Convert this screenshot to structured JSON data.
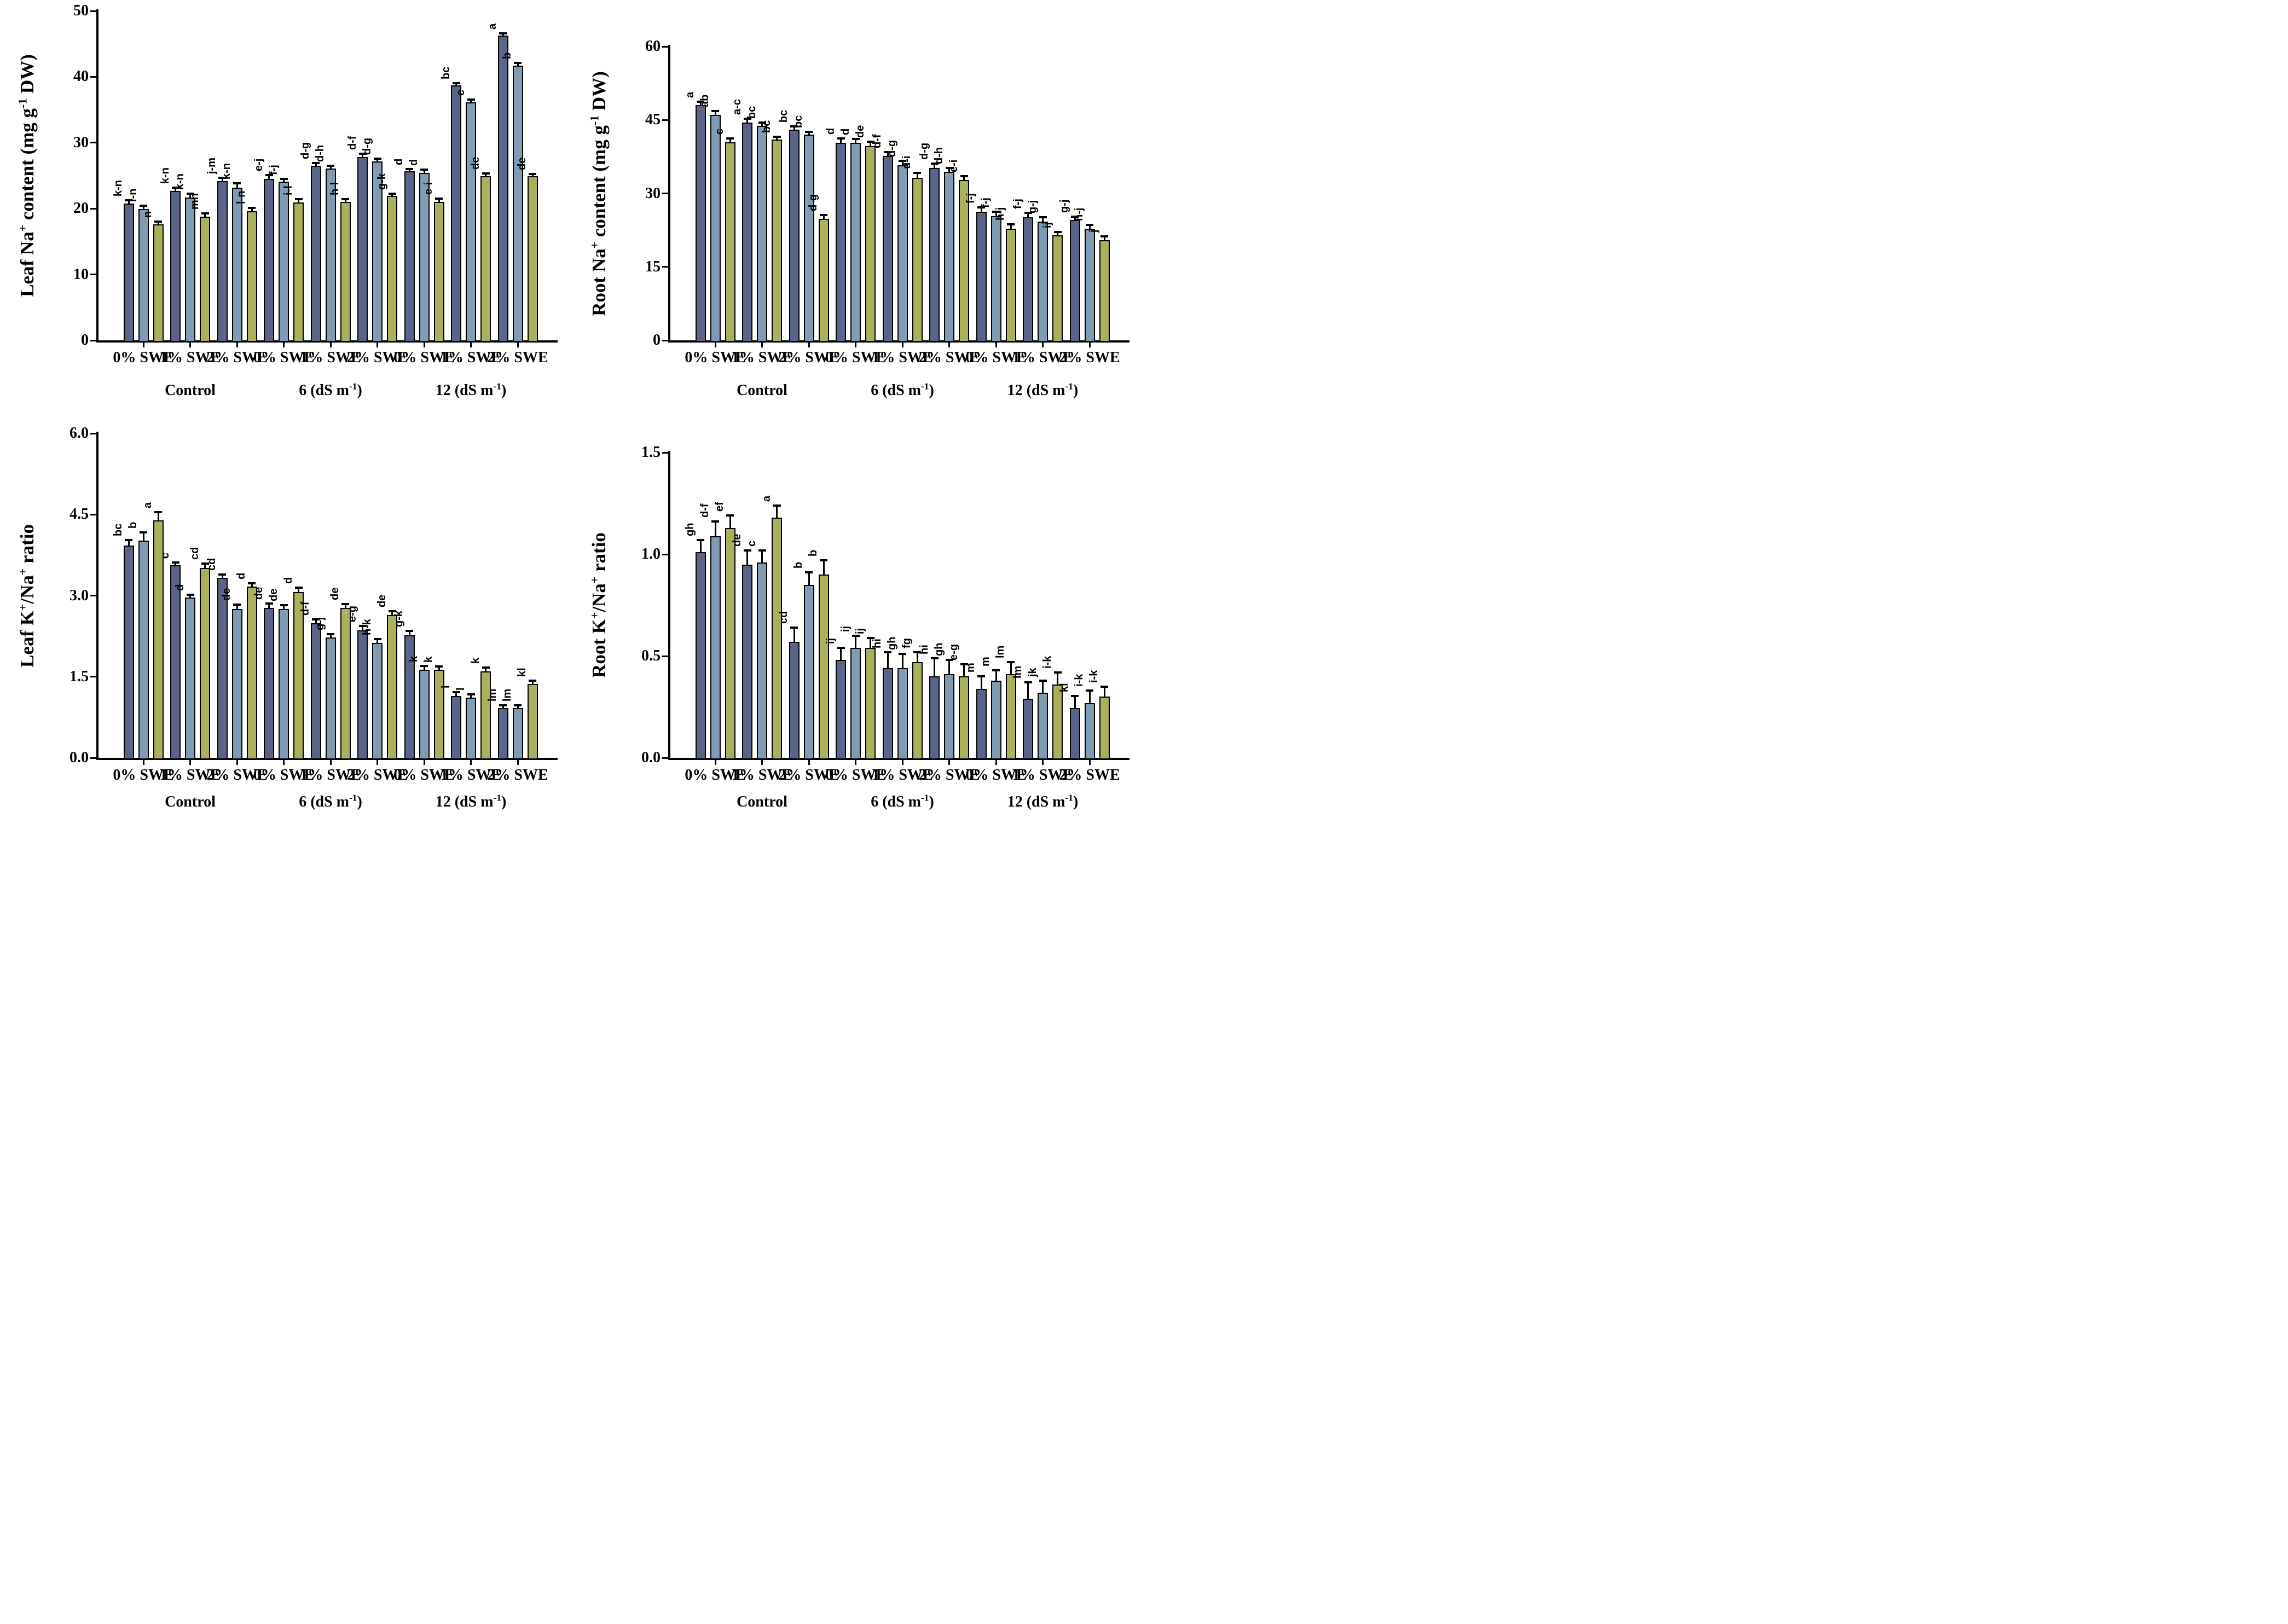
{
  "figure": {
    "background": "#ffffff",
    "axis_color": "#000000",
    "text_color": "#000000",
    "series_colors": [
      "#5a6489",
      "#7f9cb4",
      "#aab05c"
    ],
    "bar_outline_color": "#000000",
    "legend": "none",
    "grid": false
  },
  "chart_data": [
    {
      "type": "bar",
      "title": "",
      "ylabel_plain": "Leaf Na+ content (mg g-1 DW)",
      "ylabel": [
        {
          "t": "Leaf Na"
        },
        {
          "t": "+",
          "sup": true
        },
        {
          "t": " content (mg g"
        },
        {
          "t": "-1",
          "sup": true
        },
        {
          "t": " DW)"
        }
      ],
      "ylim": [
        0,
        50
      ],
      "yticks": [
        {
          "v": 0,
          "t": "0"
        },
        {
          "v": 10,
          "t": "10"
        },
        {
          "v": 20,
          "t": "20"
        },
        {
          "v": 30,
          "t": "30"
        },
        {
          "v": 40,
          "t": "40"
        },
        {
          "v": 50,
          "t": "50"
        }
      ],
      "conditions": [
        {
          "label_plain": "Control",
          "label": [
            {
              "t": "Control"
            }
          ],
          "center_group": 1
        },
        {
          "label_plain": "6 (dS m-1)",
          "label": [
            {
              "t": "6 (dS m"
            },
            {
              "t": "-1",
              "sup": true
            },
            {
              "t": ")"
            }
          ],
          "center_group": 4
        },
        {
          "label_plain": "12 (dS m-1)",
          "label": [
            {
              "t": "12 (dS m"
            },
            {
              "t": "-1",
              "sup": true
            },
            {
              "t": ")"
            }
          ],
          "center_group": 7
        }
      ],
      "groups": [
        {
          "category": "0% SWE",
          "values": [
            20.8,
            19.9,
            17.6
          ],
          "errors": [
            0.5,
            0.5,
            0.4
          ],
          "letters": [
            "k-n",
            "l-n",
            "n"
          ]
        },
        {
          "category": "1% SWE",
          "values": [
            22.7,
            21.7,
            18.8
          ],
          "errors": [
            0.5,
            0.6,
            0.5
          ],
          "letters": [
            "k-n",
            "k-n",
            "mn"
          ]
        },
        {
          "category": "2% SWE",
          "values": [
            24.2,
            23.2,
            19.6
          ],
          "errors": [
            0.5,
            0.6,
            0.5
          ],
          "letters": [
            "j-m",
            "k-n",
            "l-n"
          ]
        },
        {
          "category": "0% SWE",
          "values": [
            24.5,
            24.1,
            20.9
          ],
          "errors": [
            0.6,
            0.4,
            0.5
          ],
          "letters": [
            "e-j",
            "f-j",
            "i-l"
          ]
        },
        {
          "category": "1% SWE",
          "values": [
            26.5,
            26.1,
            21.0
          ],
          "errors": [
            0.4,
            0.4,
            0.4
          ],
          "letters": [
            "d-g",
            "d-h",
            "h-l"
          ]
        },
        {
          "category": "2% SWE",
          "values": [
            27.8,
            27.2,
            21.9
          ],
          "errors": [
            0.5,
            0.4,
            0.35
          ],
          "letters": [
            "d-f",
            "d-g",
            "g-k"
          ]
        },
        {
          "category": "0% SWE",
          "values": [
            25.7,
            25.4,
            21.0
          ],
          "errors": [
            0.3,
            0.5,
            0.5
          ],
          "letters": [
            "d",
            "d",
            "e-i"
          ]
        },
        {
          "category": "1% SWE",
          "values": [
            38.7,
            36.1,
            24.9
          ],
          "errors": [
            0.35,
            0.45,
            0.4
          ],
          "letters": [
            "bc",
            "c",
            "de"
          ]
        },
        {
          "category": "2% SWE",
          "values": [
            46.3,
            41.7,
            24.9
          ],
          "errors": [
            0.3,
            0.4,
            0.35
          ],
          "letters": [
            "a",
            "b",
            "de"
          ]
        }
      ]
    },
    {
      "type": "bar",
      "title": "",
      "ylabel_plain": "Root Na+ content (mg g-1 DW)",
      "ylabel": [
        {
          "t": "Root Na"
        },
        {
          "t": "+",
          "sup": true
        },
        {
          "t": " content (mg g"
        },
        {
          "t": "-1",
          "sup": true
        },
        {
          "t": " DW)"
        }
      ],
      "ylim": [
        0,
        60
      ],
      "yticks": [
        {
          "v": 0,
          "t": "0"
        },
        {
          "v": 15,
          "t": "15"
        },
        {
          "v": 30,
          "t": "30"
        },
        {
          "v": 45,
          "t": "45"
        },
        {
          "v": 60,
          "t": "60"
        }
      ],
      "conditions": [
        {
          "label_plain": "Control",
          "label": [
            {
              "t": "Control"
            }
          ],
          "center_group": 1
        },
        {
          "label_plain": "6 (dS m-1)",
          "label": [
            {
              "t": "6 (dS m"
            },
            {
              "t": "-1",
              "sup": true
            },
            {
              "t": ")"
            }
          ],
          "center_group": 4
        },
        {
          "label_plain": "12 (dS m-1)",
          "label": [
            {
              "t": "12 (dS m"
            },
            {
              "t": "-1",
              "sup": true
            },
            {
              "t": ")"
            }
          ],
          "center_group": 7
        }
      ],
      "groups": [
        {
          "category": "0% SWE",
          "values": [
            48.0,
            46.0,
            40.5
          ],
          "errors": [
            0.7,
            0.8,
            0.7
          ],
          "letters": [
            "a",
            "ab",
            "c"
          ]
        },
        {
          "category": "1% SWE",
          "values": [
            44.5,
            43.8,
            41.0
          ],
          "errors": [
            0.8,
            0.7,
            0.6
          ],
          "letters": [
            "a-c",
            "bc",
            "bc"
          ]
        },
        {
          "category": "2% SWE",
          "values": [
            43.0,
            42.0,
            24.8
          ],
          "errors": [
            0.7,
            0.6,
            0.8
          ],
          "letters": [
            "bc",
            "bc",
            "d-g"
          ]
        },
        {
          "category": "0% SWE",
          "values": [
            40.3,
            40.3,
            39.7
          ],
          "errors": [
            0.9,
            0.8,
            0.9
          ],
          "letters": [
            "d",
            "d",
            "de"
          ]
        },
        {
          "category": "1% SWE",
          "values": [
            37.6,
            35.8,
            33.2
          ],
          "errors": [
            0.8,
            0.9,
            1.0
          ],
          "letters": [
            "d-f",
            "d-g",
            "d-i"
          ]
        },
        {
          "category": "2% SWE",
          "values": [
            35.2,
            34.4,
            32.7
          ],
          "errors": [
            0.9,
            0.8,
            0.8
          ],
          "letters": [
            "d-g",
            "d-h",
            "e-i"
          ]
        },
        {
          "category": "0% SWE",
          "values": [
            26.3,
            25.4,
            22.8
          ],
          "errors": [
            0.8,
            0.9,
            0.9
          ],
          "letters": [
            "f-j",
            "f-j",
            "h-j"
          ]
        },
        {
          "category": "1% SWE",
          "values": [
            25.1,
            24.3,
            21.4
          ],
          "errors": [
            0.9,
            0.8,
            0.7
          ],
          "letters": [
            "f-j",
            "g-j",
            "ij"
          ]
        },
        {
          "category": "2% SWE",
          "values": [
            24.6,
            22.8,
            20.5
          ],
          "errors": [
            0.7,
            0.8,
            0.7
          ],
          "letters": [
            "g-j",
            "h-j",
            "j"
          ]
        }
      ]
    },
    {
      "type": "bar",
      "title": "",
      "ylabel_plain": "Leaf K+/Na+ ratio",
      "ylabel": [
        {
          "t": "Leaf K"
        },
        {
          "t": "+",
          "sup": true
        },
        {
          "t": "/Na"
        },
        {
          "t": "+",
          "sup": true
        },
        {
          "t": " ratio"
        }
      ],
      "ylim": [
        0,
        6
      ],
      "yticks": [
        {
          "v": 0,
          "t": "0.0"
        },
        {
          "v": 1.5,
          "t": "1.5"
        },
        {
          "v": 3,
          "t": "3.0"
        },
        {
          "v": 4.5,
          "t": "4.5"
        },
        {
          "v": 6,
          "t": "6.0"
        }
      ],
      "conditions": [
        {
          "label_plain": "Control",
          "label": [
            {
              "t": "Control"
            }
          ],
          "center_group": 1
        },
        {
          "label_plain": "6 (dS m-1)",
          "label": [
            {
              "t": "6 (dS m"
            },
            {
              "t": "-1",
              "sup": true
            },
            {
              "t": ")"
            }
          ],
          "center_group": 4
        },
        {
          "label_plain": "12 (dS m-1)",
          "label": [
            {
              "t": "12 (dS m"
            },
            {
              "t": "-1",
              "sup": true
            },
            {
              "t": ")"
            }
          ],
          "center_group": 7
        }
      ],
      "groups": [
        {
          "category": "0% SWE",
          "values": [
            3.93,
            4.02,
            4.39
          ],
          "errors": [
            0.1,
            0.15,
            0.15
          ],
          "letters": [
            "bc",
            "b",
            "a"
          ]
        },
        {
          "category": "1% SWE",
          "values": [
            3.56,
            2.96,
            3.51
          ],
          "errors": [
            0.05,
            0.06,
            0.08
          ],
          "letters": [
            "c",
            "d",
            "cd"
          ]
        },
        {
          "category": "2% SWE",
          "values": [
            3.33,
            2.75,
            3.17
          ],
          "errors": [
            0.06,
            0.08,
            0.06
          ],
          "letters": [
            "cd",
            "de",
            "d"
          ]
        },
        {
          "category": "0% SWE",
          "values": [
            2.77,
            2.75,
            3.07
          ],
          "errors": [
            0.08,
            0.07,
            0.08
          ],
          "letters": [
            "de",
            "de",
            "d"
          ]
        },
        {
          "category": "1% SWE",
          "values": [
            2.49,
            2.23,
            2.77
          ],
          "errors": [
            0.07,
            0.06,
            0.07
          ],
          "letters": [
            "d-f",
            "g-j",
            "de"
          ]
        },
        {
          "category": "2% SWE",
          "values": [
            2.36,
            2.12,
            2.64
          ],
          "errors": [
            0.08,
            0.08,
            0.07
          ],
          "letters": [
            "e-g",
            "h-k",
            "de"
          ]
        },
        {
          "category": "0% SWE",
          "values": [
            2.27,
            1.63,
            1.63
          ],
          "errors": [
            0.08,
            0.07,
            0.06
          ],
          "letters": [
            "g-k",
            "k",
            "k"
          ]
        },
        {
          "category": "1% SWE",
          "values": [
            1.14,
            1.11,
            1.6
          ],
          "errors": [
            0.07,
            0.06,
            0.07
          ],
          "letters": [
            "l",
            "l",
            "k"
          ]
        },
        {
          "category": "2% SWE",
          "values": [
            0.92,
            0.92,
            1.37
          ],
          "errors": [
            0.05,
            0.05,
            0.06
          ],
          "letters": [
            "lm",
            "lm",
            "kl"
          ]
        }
      ]
    },
    {
      "type": "bar",
      "title": "",
      "ylabel_plain": "Root K+/Na+ ratio",
      "ylabel": [
        {
          "t": "Root K"
        },
        {
          "t": "+",
          "sup": true
        },
        {
          "t": "/Na"
        },
        {
          "t": "+",
          "sup": true
        },
        {
          "t": " ratio"
        }
      ],
      "ylim": [
        0,
        1.5
      ],
      "yticks": [
        {
          "v": 0,
          "t": "0.0"
        },
        {
          "v": 0.5,
          "t": "0.5"
        },
        {
          "v": 1.0,
          "t": "1.0"
        },
        {
          "v": 1.5,
          "t": "1.5"
        }
      ],
      "conditions": [
        {
          "label_plain": "Control",
          "label": [
            {
              "t": "Control"
            }
          ],
          "center_group": 1
        },
        {
          "label_plain": "6 (dS m-1)",
          "label": [
            {
              "t": "6 (dS m"
            },
            {
              "t": "-1",
              "sup": true
            },
            {
              "t": ")"
            }
          ],
          "center_group": 4
        },
        {
          "label_plain": "12 (dS m-1)",
          "label": [
            {
              "t": "12 (dS m"
            },
            {
              "t": "-1",
              "sup": true
            },
            {
              "t": ")"
            }
          ],
          "center_group": 7
        }
      ],
      "groups": [
        {
          "category": "0% SWE",
          "values": [
            1.01,
            1.09,
            1.13
          ],
          "errors": [
            0.06,
            0.07,
            0.06
          ],
          "letters": [
            "gh",
            "d-f",
            "ef"
          ]
        },
        {
          "category": "1% SWE",
          "values": [
            0.95,
            0.96,
            1.18
          ],
          "errors": [
            0.07,
            0.06,
            0.06
          ],
          "letters": [
            "de",
            "c",
            "a"
          ]
        },
        {
          "category": "2% SWE",
          "values": [
            0.57,
            0.85,
            0.9
          ],
          "errors": [
            0.07,
            0.06,
            0.07
          ],
          "letters": [
            "cd",
            "b",
            "b"
          ]
        },
        {
          "category": "0% SWE",
          "values": [
            0.48,
            0.54,
            0.54
          ],
          "errors": [
            0.06,
            0.06,
            0.05
          ],
          "letters": [
            "ij",
            "ij",
            "ij"
          ]
        },
        {
          "category": "1% SWE",
          "values": [
            0.44,
            0.44,
            0.47
          ],
          "errors": [
            0.08,
            0.07,
            0.05
          ],
          "letters": [
            "hi",
            "gh",
            "fg"
          ]
        },
        {
          "category": "2% SWE",
          "values": [
            0.4,
            0.41,
            0.4
          ],
          "errors": [
            0.09,
            0.07,
            0.06
          ],
          "letters": [
            "hi",
            "gh",
            "e-g"
          ]
        },
        {
          "category": "0% SWE",
          "values": [
            0.34,
            0.38,
            0.41
          ],
          "errors": [
            0.06,
            0.05,
            0.06
          ],
          "letters": [
            "m",
            "m",
            "lm"
          ]
        },
        {
          "category": "1% SWE",
          "values": [
            0.29,
            0.32,
            0.36
          ],
          "errors": [
            0.08,
            0.06,
            0.06
          ],
          "letters": [
            "lm",
            "jk",
            "i-k"
          ]
        },
        {
          "category": "2% SWE",
          "values": [
            0.245,
            0.27,
            0.3
          ],
          "errors": [
            0.06,
            0.06,
            0.05
          ],
          "letters": [
            "kl",
            "i-k",
            "i-k"
          ]
        }
      ]
    }
  ]
}
